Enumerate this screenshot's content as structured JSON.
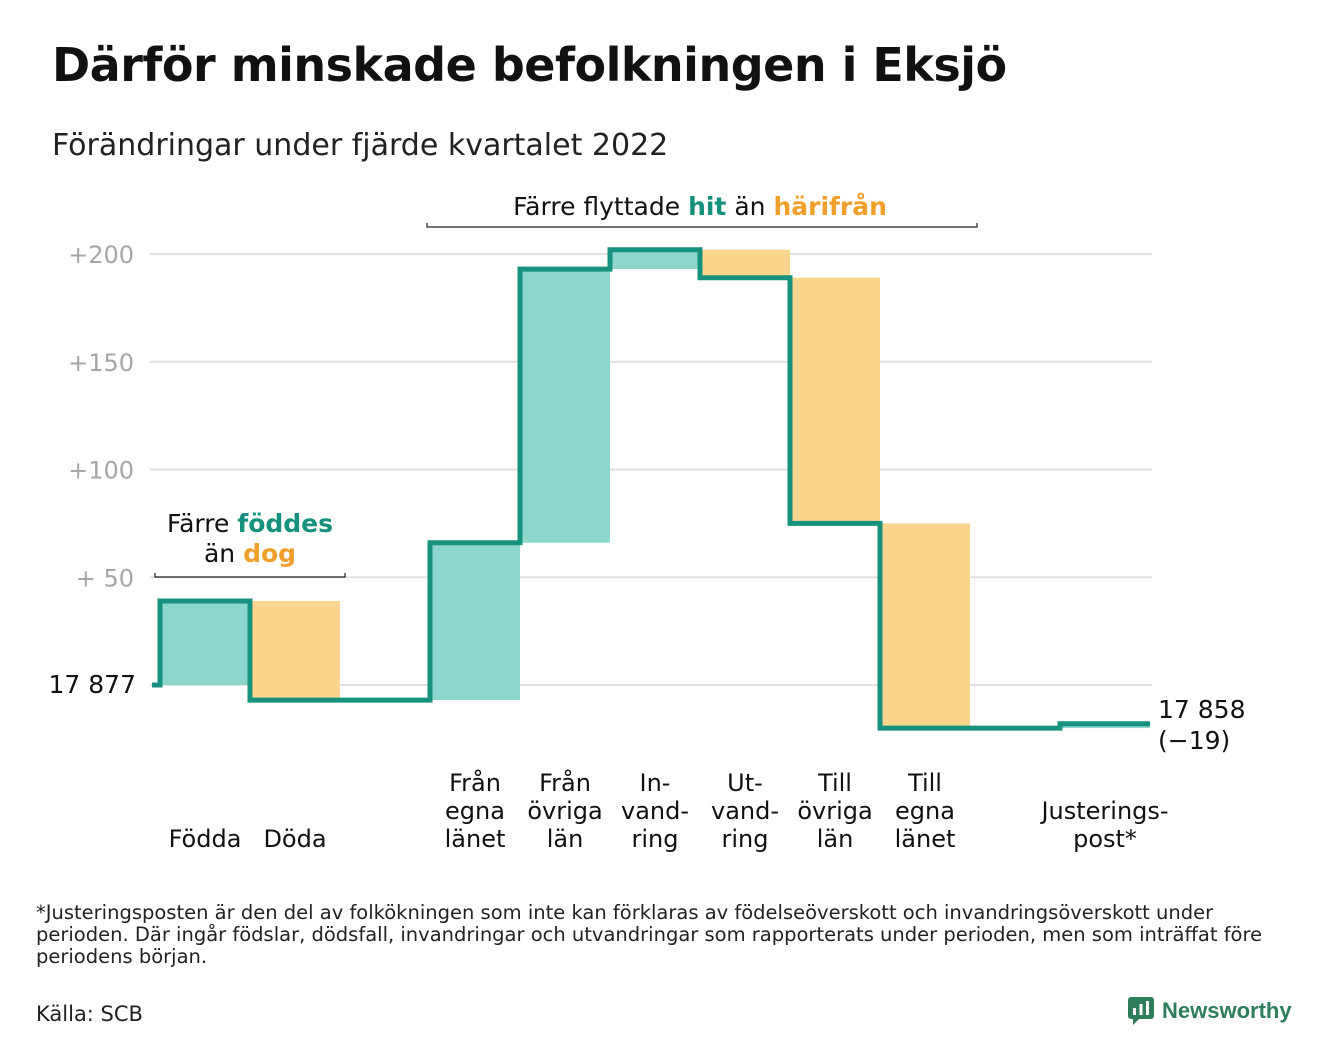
{
  "title": "Därför minskade befolkningen i Eksjö",
  "subtitle": "Förändringar under fjärde kvartalet 2022",
  "colors": {
    "inflow": "#8dd6cc",
    "outflow": "#fad58e",
    "line": "#17927e",
    "accent_teal": "#14917e",
    "accent_orange": "#f0a02a",
    "grid": "#e2e2e2",
    "tick": "#a6a6a6"
  },
  "chart_data": {
    "type": "waterfall",
    "start_label": "17 877",
    "end_label": "17 858",
    "end_change_label": "(−19)",
    "y_ticks": [
      {
        "value": 50,
        "label": "+ 50"
      },
      {
        "value": 100,
        "label": "+100"
      },
      {
        "value": 150,
        "label": "+150"
      },
      {
        "value": 200,
        "label": "+200"
      }
    ],
    "ylim": [
      -30,
      210
    ],
    "steps": [
      {
        "label": [
          "",
          "",
          "Födda"
        ],
        "value": 39,
        "kind": "inflow"
      },
      {
        "label": [
          "",
          "",
          "Döda"
        ],
        "value": -46,
        "kind": "outflow"
      },
      {
        "label": [
          "",
          "",
          ""
        ],
        "value": 0,
        "kind": "none"
      },
      {
        "label": [
          "Från",
          "egna",
          "länet"
        ],
        "value": 73,
        "kind": "inflow"
      },
      {
        "label": [
          "Från",
          "övriga",
          "län"
        ],
        "value": 127,
        "kind": "inflow"
      },
      {
        "label": [
          "In-",
          "vand-",
          "ring"
        ],
        "value": 9,
        "kind": "inflow"
      },
      {
        "label": [
          "Ut-",
          "vand-",
          "ring"
        ],
        "value": -13,
        "kind": "outflow"
      },
      {
        "label": [
          "Till",
          "övriga",
          "län"
        ],
        "value": -114,
        "kind": "outflow"
      },
      {
        "label": [
          "Till",
          "egna",
          "länet"
        ],
        "value": -95,
        "kind": "outflow"
      },
      {
        "label": [
          "",
          "",
          ""
        ],
        "value": 0,
        "kind": "none"
      },
      {
        "label": [
          "",
          "Justerings-",
          "post*"
        ],
        "value": 2,
        "kind": "inflow"
      }
    ],
    "annotations": [
      {
        "id": "births",
        "parts": [
          {
            "text": "Färre ",
            "color": ""
          },
          {
            "text": "föddes",
            "color": "teal"
          }
        ],
        "parts2": [
          {
            "text": "än ",
            "color": ""
          },
          {
            "text": "dog",
            "color": "orange"
          }
        ]
      },
      {
        "id": "migration",
        "parts": [
          {
            "text": "Färre flyttade ",
            "color": ""
          },
          {
            "text": "hit",
            "color": "teal"
          },
          {
            "text": " än ",
            "color": ""
          },
          {
            "text": "härifrån",
            "color": "orange"
          }
        ]
      }
    ]
  },
  "footnote": "*Justeringsposten är den del av folkökningen som inte kan förklaras av födelseöverskott och invandringsöverskott under perioden. Där ingår födslar, dödsfall, invandringar och utvandringar som rapporterats under perioden, men som inträffat före periodens början.",
  "source": "Källa: SCB",
  "brand": "Newsworthy"
}
